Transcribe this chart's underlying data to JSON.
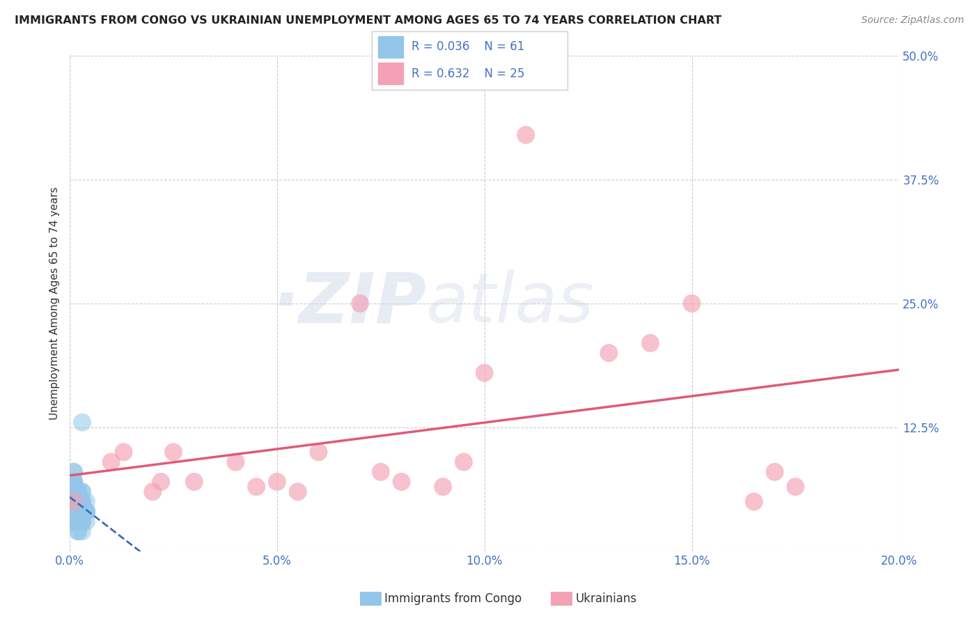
{
  "title": "IMMIGRANTS FROM CONGO VS UKRAINIAN UNEMPLOYMENT AMONG AGES 65 TO 74 YEARS CORRELATION CHART",
  "source": "Source: ZipAtlas.com",
  "ylabel": "Unemployment Among Ages 65 to 74 years",
  "xlim": [
    0.0,
    0.2
  ],
  "ylim": [
    0.0,
    0.5
  ],
  "xticks": [
    0.0,
    0.05,
    0.1,
    0.15,
    0.2
  ],
  "yticks": [
    0.0,
    0.125,
    0.25,
    0.375,
    0.5
  ],
  "xtick_labels": [
    "0.0%",
    "5.0%",
    "10.0%",
    "15.0%",
    "20.0%"
  ],
  "ytick_labels": [
    "",
    "12.5%",
    "25.0%",
    "37.5%",
    "50.0%"
  ],
  "legend_label1": "Immigrants from Congo",
  "legend_label2": "Ukrainians",
  "color_congo": "#93c6e8",
  "color_ukraine": "#f4a0b5",
  "color_congo_line": "#3a6bbf",
  "color_ukraine_line": "#e05a78",
  "watermark_zip": "ZIP",
  "watermark_atlas": "atlas",
  "congo_x": [
    0.001,
    0.002,
    0.001,
    0.003,
    0.001,
    0.002,
    0.003,
    0.004,
    0.001,
    0.002,
    0.001,
    0.003,
    0.002,
    0.001,
    0.004,
    0.003,
    0.002,
    0.001,
    0.002,
    0.003,
    0.001,
    0.002,
    0.004,
    0.003,
    0.001,
    0.002,
    0.003,
    0.001,
    0.002,
    0.004,
    0.001,
    0.002,
    0.003,
    0.001,
    0.002,
    0.001,
    0.003,
    0.002,
    0.001,
    0.002,
    0.003,
    0.004,
    0.001,
    0.002,
    0.003,
    0.001,
    0.002,
    0.001,
    0.003,
    0.002,
    0.001,
    0.002,
    0.003,
    0.001,
    0.004,
    0.002,
    0.001,
    0.002,
    0.003,
    0.001,
    0.002
  ],
  "congo_y": [
    0.05,
    0.02,
    0.07,
    0.03,
    0.04,
    0.06,
    0.02,
    0.03,
    0.08,
    0.05,
    0.04,
    0.03,
    0.06,
    0.07,
    0.04,
    0.05,
    0.03,
    0.06,
    0.04,
    0.05,
    0.03,
    0.02,
    0.04,
    0.06,
    0.05,
    0.04,
    0.03,
    0.08,
    0.05,
    0.04,
    0.06,
    0.03,
    0.05,
    0.04,
    0.06,
    0.07,
    0.04,
    0.05,
    0.03,
    0.06,
    0.04,
    0.05,
    0.07,
    0.03,
    0.04,
    0.06,
    0.05,
    0.04,
    0.13,
    0.05,
    0.06,
    0.04,
    0.05,
    0.03,
    0.04,
    0.06,
    0.05,
    0.04,
    0.06,
    0.03,
    0.05
  ],
  "ukraine_x": [
    0.001,
    0.01,
    0.013,
    0.02,
    0.022,
    0.025,
    0.03,
    0.04,
    0.045,
    0.05,
    0.055,
    0.06,
    0.07,
    0.075,
    0.08,
    0.09,
    0.095,
    0.1,
    0.11,
    0.13,
    0.14,
    0.15,
    0.165,
    0.17,
    0.175
  ],
  "ukraine_y": [
    0.05,
    0.09,
    0.1,
    0.06,
    0.07,
    0.1,
    0.07,
    0.09,
    0.065,
    0.07,
    0.06,
    0.1,
    0.25,
    0.08,
    0.07,
    0.065,
    0.09,
    0.18,
    0.42,
    0.2,
    0.21,
    0.25,
    0.05,
    0.08,
    0.065
  ],
  "background_color": "#ffffff",
  "grid_color": "#cccccc"
}
